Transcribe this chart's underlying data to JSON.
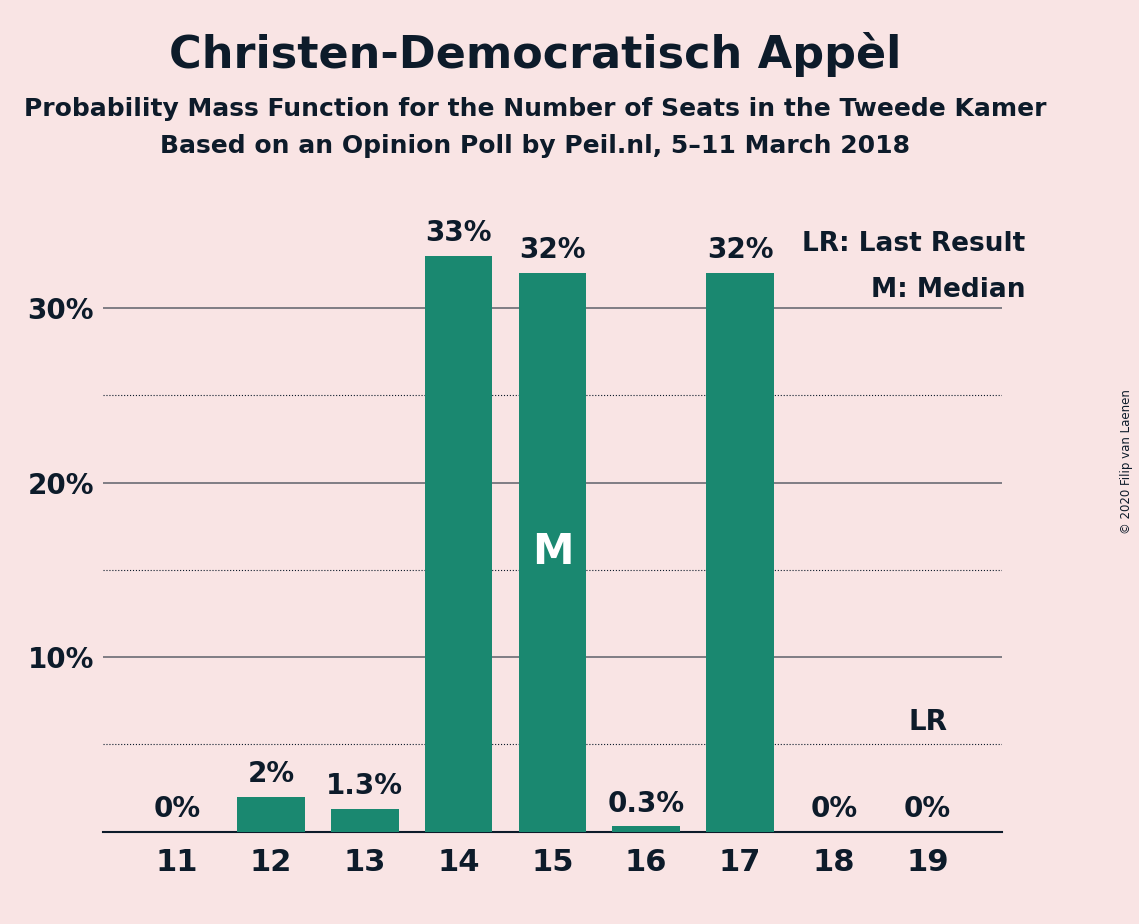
{
  "title": "Christen-Democratisch Appèl",
  "subtitle1": "Probability Mass Function for the Number of Seats in the Tweede Kamer",
  "subtitle2": "Based on an Opinion Poll by Peil.nl, 5–11 March 2018",
  "copyright": "© 2020 Filip van Laenen",
  "categories": [
    11,
    12,
    13,
    14,
    15,
    16,
    17,
    18,
    19
  ],
  "values": [
    0.0,
    2.0,
    1.3,
    33.0,
    32.0,
    0.3,
    32.0,
    0.0,
    0.0
  ],
  "bar_color": "#1A8870",
  "background_color": "#F9E4E4",
  "text_color": "#0D1B2A",
  "bar_labels": [
    "0%",
    "2%",
    "1.3%",
    "33%",
    "32%",
    "0.3%",
    "32%",
    "0%",
    "0%"
  ],
  "median_bar_index": 4,
  "median_label": "M",
  "lr_bar_index": 8,
  "lr_label": "LR",
  "legend_lr": "LR: Last Result",
  "legend_m": "M: Median",
  "ylim": [
    0,
    36
  ],
  "solid_yticks": [
    10,
    20,
    30
  ],
  "dotted_yticks": [
    5,
    15,
    25
  ],
  "ytick_labels": [
    10,
    20,
    30
  ],
  "title_fontsize": 32,
  "subtitle_fontsize": 18,
  "bar_label_fontsize": 20,
  "ytick_fontsize": 20,
  "xtick_fontsize": 22,
  "legend_fontsize": 19,
  "median_fontsize": 30,
  "bar_width": 0.72
}
